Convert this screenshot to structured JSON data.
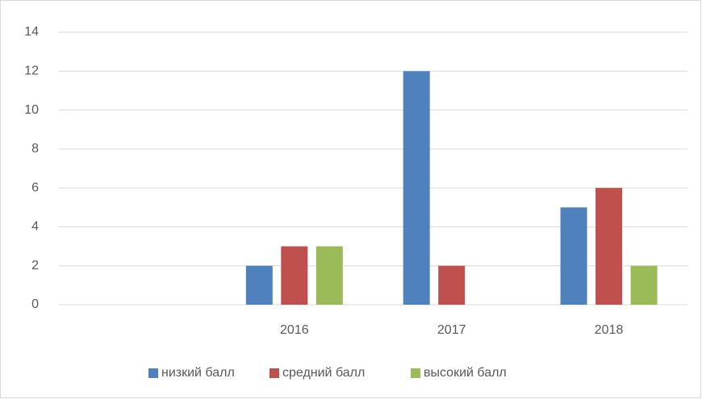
{
  "chart_data": {
    "type": "bar",
    "categories": [
      null,
      "2016",
      "2017",
      "2018"
    ],
    "series": [
      {
        "name": "низкий балл",
        "color": "#4f81bd",
        "values": [
          null,
          2,
          12,
          5
        ]
      },
      {
        "name": "средний балл",
        "color": "#c0504d",
        "values": [
          null,
          3,
          2,
          6
        ]
      },
      {
        "name": "высокий балл",
        "color": "#9bbb59",
        "values": [
          null,
          3,
          0,
          2
        ]
      }
    ],
    "ylim": [
      0,
      14
    ],
    "yticks": [
      0,
      2,
      4,
      6,
      8,
      10,
      12,
      14
    ],
    "grid": true,
    "legend": "bottom"
  }
}
